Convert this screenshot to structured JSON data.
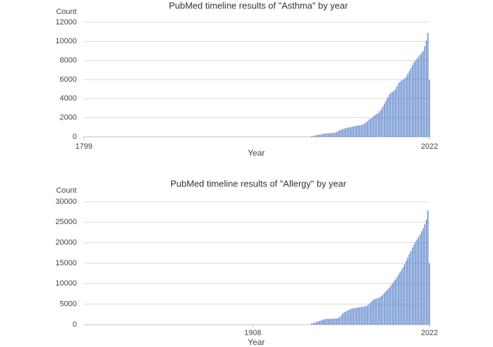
{
  "chart_data": [
    {
      "type": "bar",
      "title": "PubMed timeline results of \"Asthma\" by year",
      "y_label": "Count",
      "x_label": "Year",
      "color": "#4472c4",
      "grid": true,
      "xlim": [
        1799,
        2022
      ],
      "xticks": [
        1799,
        2022
      ],
      "ylim": [
        0,
        12000
      ],
      "yticks": [
        0,
        2000,
        4000,
        6000,
        8000,
        10000,
        12000
      ],
      "x": [
        1946,
        1947,
        1948,
        1949,
        1950,
        1951,
        1952,
        1953,
        1954,
        1955,
        1956,
        1957,
        1958,
        1959,
        1960,
        1961,
        1962,
        1963,
        1964,
        1965,
        1966,
        1967,
        1968,
        1969,
        1970,
        1971,
        1972,
        1973,
        1974,
        1975,
        1976,
        1977,
        1978,
        1979,
        1980,
        1981,
        1982,
        1983,
        1984,
        1985,
        1986,
        1987,
        1988,
        1989,
        1990,
        1991,
        1992,
        1993,
        1994,
        1995,
        1996,
        1997,
        1998,
        1999,
        2000,
        2001,
        2002,
        2003,
        2004,
        2005,
        2006,
        2007,
        2008,
        2009,
        2010,
        2011,
        2012,
        2013,
        2014,
        2015,
        2016,
        2017,
        2018,
        2019,
        2020,
        2021,
        2022
      ],
      "values": [
        80,
        100,
        130,
        160,
        200,
        230,
        260,
        300,
        330,
        350,
        360,
        370,
        380,
        400,
        420,
        450,
        500,
        600,
        700,
        750,
        800,
        850,
        900,
        950,
        1000,
        1000,
        1050,
        1100,
        1150,
        1150,
        1200,
        1200,
        1250,
        1300,
        1400,
        1500,
        1650,
        1800,
        1900,
        2000,
        2200,
        2300,
        2400,
        2500,
        2700,
        2900,
        3200,
        3500,
        3800,
        4100,
        4400,
        4600,
        4700,
        4800,
        5000,
        5300,
        5600,
        5800,
        5900,
        6000,
        6100,
        6300,
        6600,
        6900,
        7200,
        7500,
        7800,
        8000,
        8200,
        8400,
        8600,
        8800,
        9000,
        9500,
        10100,
        10900,
        6000
      ]
    },
    {
      "type": "bar",
      "title": "PubMed timeline results of \"Allergy\" by year",
      "y_label": "Count",
      "x_label": "Year",
      "color": "#4472c4",
      "grid": true,
      "xlim": [
        1799,
        2022
      ],
      "xticks": [
        1908,
        2022
      ],
      "ylim": [
        0,
        30000
      ],
      "yticks": [
        0,
        5000,
        10000,
        15000,
        20000,
        25000,
        30000
      ],
      "x": [
        1946,
        1947,
        1948,
        1949,
        1950,
        1951,
        1952,
        1953,
        1954,
        1955,
        1956,
        1957,
        1958,
        1959,
        1960,
        1961,
        1962,
        1963,
        1964,
        1965,
        1966,
        1967,
        1968,
        1969,
        1970,
        1971,
        1972,
        1973,
        1974,
        1975,
        1976,
        1977,
        1978,
        1979,
        1980,
        1981,
        1982,
        1983,
        1984,
        1985,
        1986,
        1987,
        1988,
        1989,
        1990,
        1991,
        1992,
        1993,
        1994,
        1995,
        1996,
        1997,
        1998,
        1999,
        2000,
        2001,
        2002,
        2003,
        2004,
        2005,
        2006,
        2007,
        2008,
        2009,
        2010,
        2011,
        2012,
        2013,
        2014,
        2015,
        2016,
        2017,
        2018,
        2019,
        2020,
        2021,
        2022
      ],
      "values": [
        300,
        400,
        500,
        600,
        800,
        900,
        1000,
        1200,
        1300,
        1400,
        1400,
        1400,
        1450,
        1450,
        1500,
        1500,
        1500,
        1600,
        1800,
        2200,
        2700,
        3000,
        3200,
        3400,
        3600,
        3800,
        3900,
        4000,
        4100,
        4100,
        4200,
        4300,
        4300,
        4400,
        4400,
        4500,
        4700,
        5000,
        5400,
        5800,
        6100,
        6300,
        6400,
        6500,
        6700,
        7000,
        7400,
        7800,
        8200,
        8600,
        9000,
        9500,
        10000,
        10500,
        11000,
        11600,
        12200,
        12800,
        13400,
        14000,
        14800,
        15600,
        16400,
        17200,
        18000,
        18800,
        19500,
        20200,
        20800,
        21400,
        22000,
        22800,
        23600,
        24500,
        25700,
        27900,
        15000
      ]
    }
  ]
}
